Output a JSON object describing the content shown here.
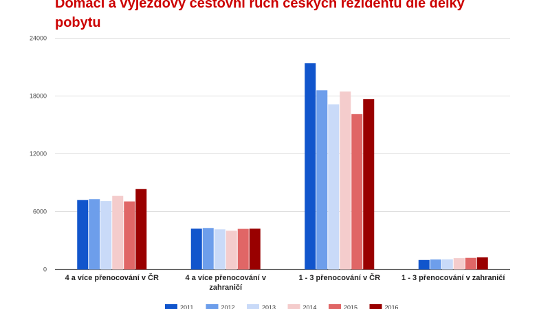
{
  "chart_data": {
    "type": "bar",
    "title": "Domácí a výjezdový cestovní ruch českých rezidentů dle délky pobytu",
    "xlabel": "",
    "ylabel": "",
    "ylim": [
      0,
      24000
    ],
    "yticks": [
      "0",
      "6000",
      "12000",
      "18000",
      "24000"
    ],
    "grid": true,
    "legend_position": "bottom",
    "categories": [
      [
        "4 a více přenocování v ČR"
      ],
      [
        "4 a více přenocování v",
        "zahraničí"
      ],
      [
        "1 - 3 přenocování v ČR"
      ],
      [
        "1 - 3 přenocování v zahraničí"
      ]
    ],
    "series": [
      {
        "name": "2011",
        "color": "#1155cc",
        "values": [
          7200,
          4230,
          21400,
          980
        ]
      },
      {
        "name": "2012",
        "color": "#6d9eeb",
        "values": [
          7300,
          4300,
          18590,
          1030
        ]
      },
      {
        "name": "2013",
        "color": "#c9daf8",
        "values": [
          7100,
          4160,
          17140,
          1050
        ]
      },
      {
        "name": "2014",
        "color": "#f4cccc",
        "values": [
          7630,
          4020,
          18470,
          1170
        ]
      },
      {
        "name": "2015",
        "color": "#e06666",
        "values": [
          7060,
          4210,
          16120,
          1200
        ]
      },
      {
        "name": "2016",
        "color": "#990000",
        "values": [
          8340,
          4230,
          17670,
          1250
        ]
      }
    ]
  }
}
